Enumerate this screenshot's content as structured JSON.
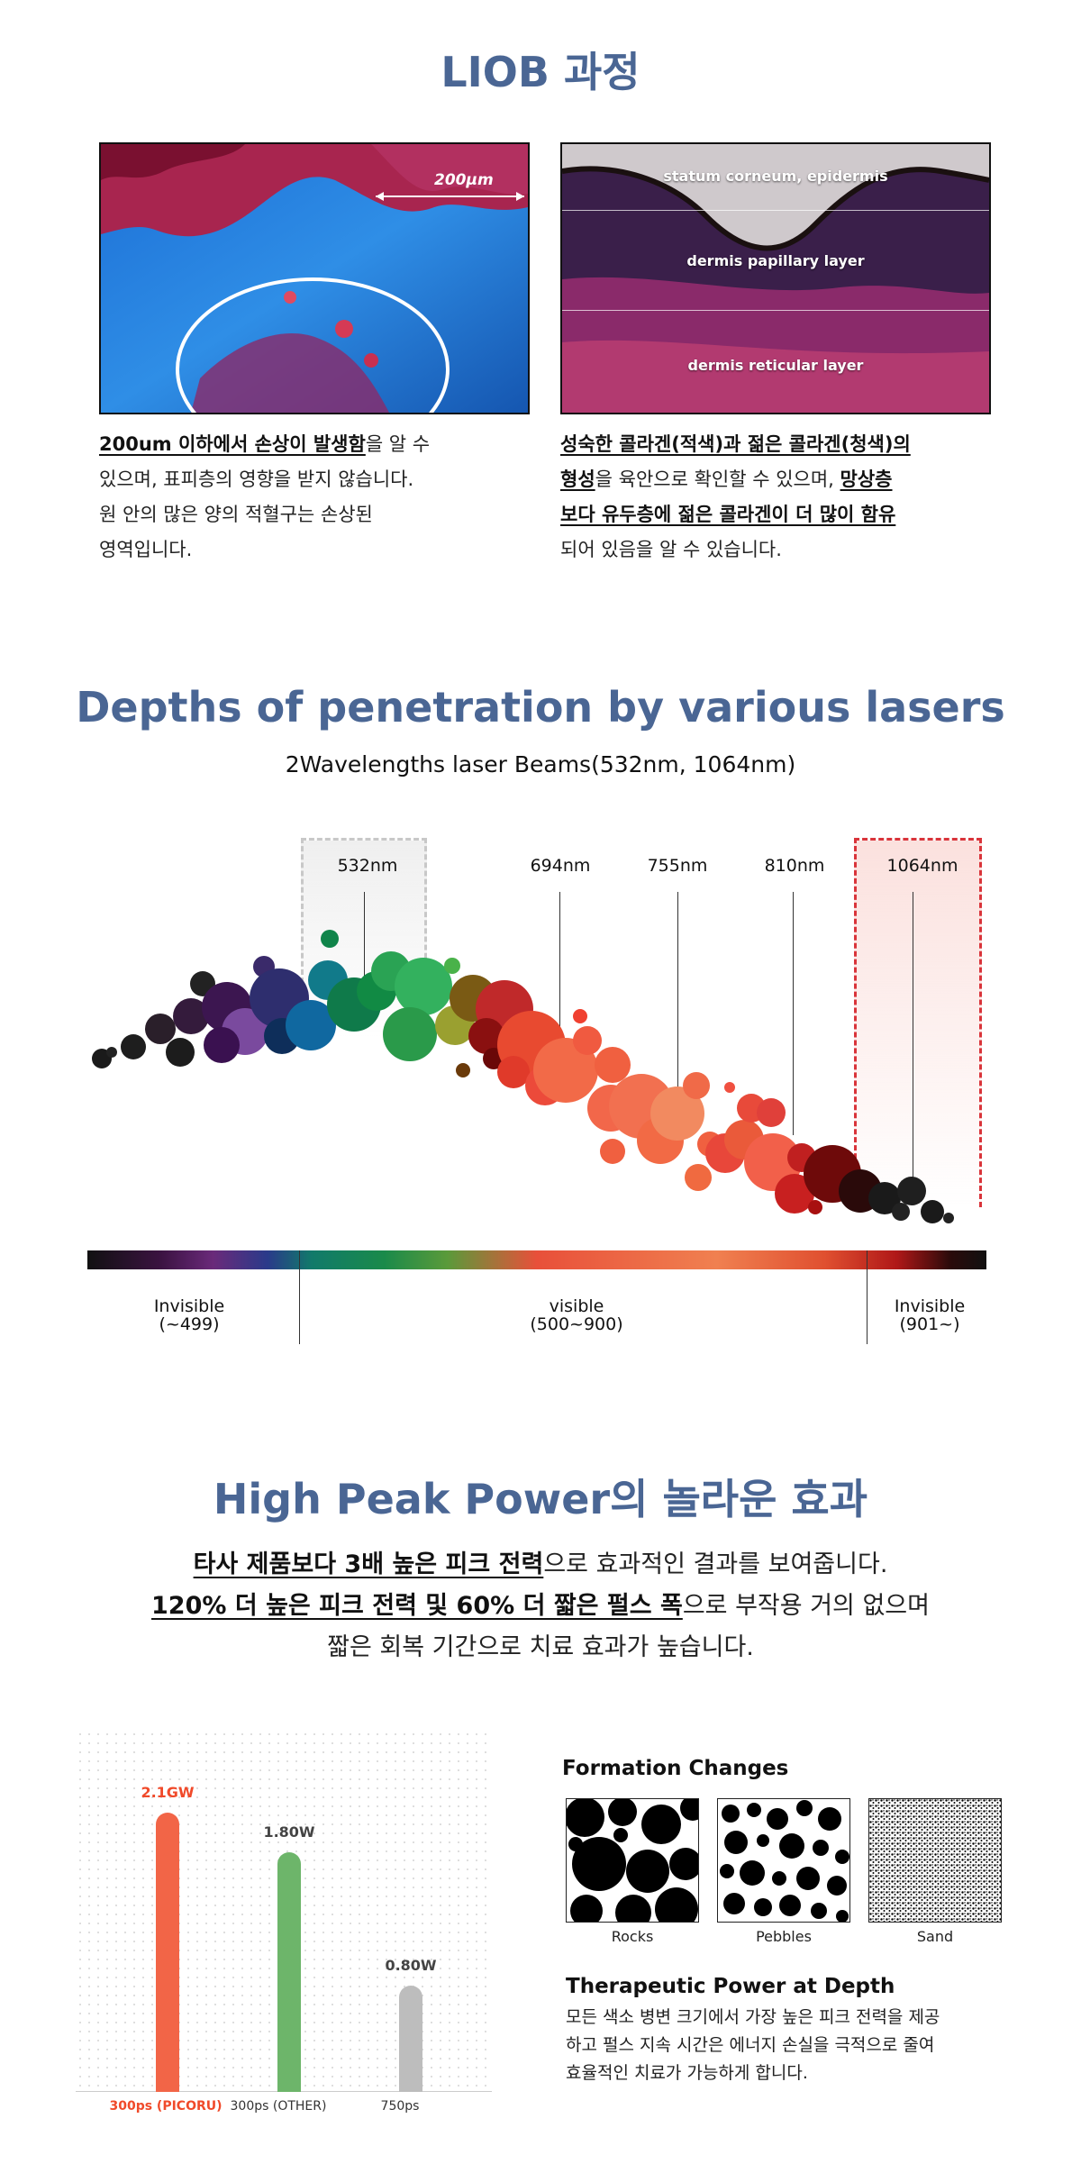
{
  "liob": {
    "title": "LIOB 과정",
    "left_image": {
      "scale_label": "200μm"
    },
    "right_image": {
      "layers": [
        "statum corneum, epidermis",
        "dermis papillary layer",
        "dermis reticular layer"
      ]
    },
    "left_text": {
      "bold": "200um 이하에서 손상이 발생함",
      "rest1": "을 알 수",
      "line2": "있으며, 표피층의 영향을 받지 않습니다.",
      "line3": "원 안의 많은 양의 적혈구는 손상된",
      "line4": "영역입니다."
    },
    "right_text": {
      "bold1": "성숙한 콜라겐(적색)과 젊은 콜라겐(청색)의",
      "bold2": "형성",
      "rest2": "을 육안으로 확인할 수 있으며, ",
      "bold3": "망상층",
      "bold4": "보다 유두층에 젊은 콜라겐이 더 많이 함유",
      "line4": "되어 있음을 알 수 있습니다."
    }
  },
  "depths": {
    "title": "Depths of penetration by various lasers",
    "subtitle": "2Wavelengths laser Beams(532nm, 1064nm)",
    "wavelengths": [
      "532nm",
      "694nm",
      "755nm",
      "810nm",
      "1064nm"
    ],
    "spectrum": [
      {
        "label": "Invisible",
        "range": "(~499)"
      },
      {
        "label": "visible",
        "range": "(500~900)"
      },
      {
        "label": "Invisible",
        "range": "(901~)"
      }
    ],
    "colors": {
      "highlight_532": "#c8c8c8",
      "highlight_1064": "#d9343a"
    }
  },
  "peak": {
    "title": "High Peak Power의 놀라운 효과",
    "line1_bold": "타사 제품보다 3배 높은 피크 전력",
    "line1_rest": "으로 효과적인 결과를 보여줍니다.",
    "line2_bold": "120% 더 높은 피크 전력 및 60% 더 짧은 펄스 폭",
    "line2_rest": "으로 부작용 거의 없으며",
    "line3": "짧은 회복 기간으로 치료 효과가 높습니다."
  },
  "chart_data": {
    "type": "bar",
    "categories": [
      "300ps (PICORU)",
      "300ps (OTHER)",
      "750ps"
    ],
    "value_labels": [
      "2.1GW",
      "1.80W",
      "0.80W"
    ],
    "values": [
      2.1,
      1.8,
      0.8
    ],
    "colors": [
      "#f26547",
      "#6db56a",
      "#bdbdbd"
    ],
    "ylim": [
      0,
      2.3
    ]
  },
  "formation": {
    "title": "Formation Changes",
    "items": [
      "Rocks",
      "Pebbles",
      "Sand"
    ]
  },
  "therapeutic": {
    "title": "Therapeutic Power at Depth",
    "line1": "모든 색소 병변 크기에서 가장 높은 피크 전력을 제공",
    "line2": "하고 펄스 지속 시간은 에너지 손실을 극적으로 줄여",
    "line3": "효율적인 치료가 가능하게 합니다."
  }
}
